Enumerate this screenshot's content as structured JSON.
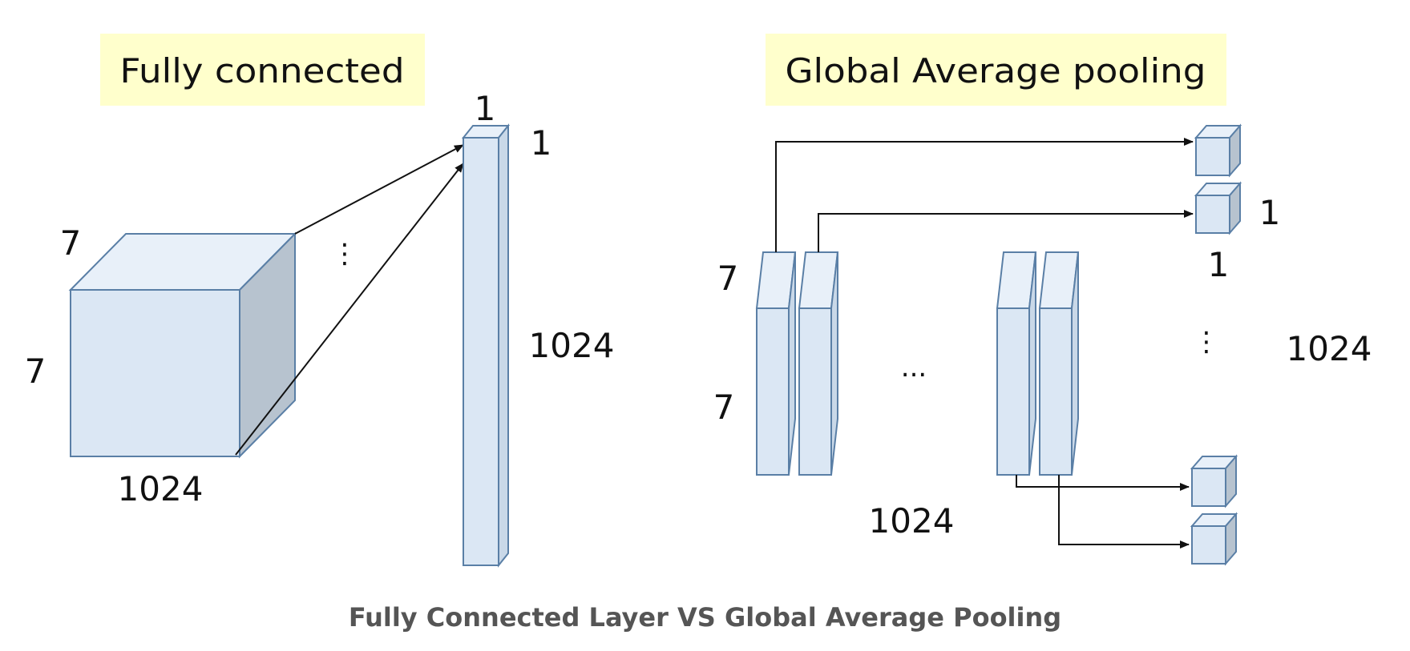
{
  "fully_connected": {
    "title": "Fully connected",
    "input_depth_label": "7",
    "input_height_label": "7",
    "input_width_label": "1024",
    "vector_top_label": "1",
    "vector_side_label": "1",
    "vector_length_label": "1024",
    "dots": "⋮"
  },
  "global_average_pooling": {
    "title": "Global Average pooling",
    "slice_depth_label": "7",
    "slice_height_label": "7",
    "channels_label": "1024",
    "ellipsis": "...",
    "output_side_label": "1",
    "output_bottom_label": "1",
    "output_count_label": "1024",
    "dots": "⋮"
  },
  "caption": "Fully Connected Layer VS Global Average Pooling",
  "colors": {
    "title_bg": "#ffffcc",
    "block_front": "#dbe7f4",
    "block_side": "#b7c3cf",
    "block_edge": "#5a7fa6"
  }
}
